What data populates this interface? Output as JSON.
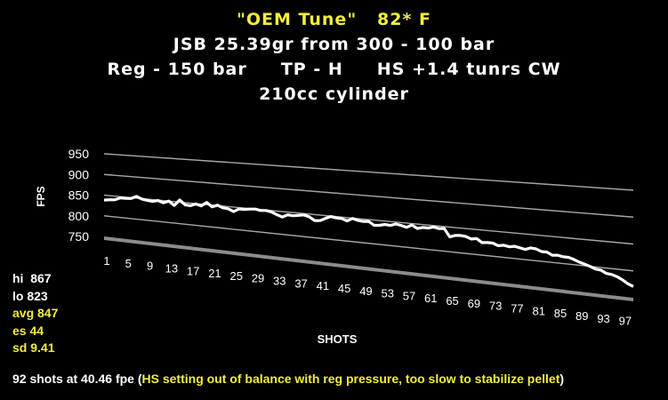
{
  "titles": {
    "line1": "\"OEM Tune\"   82* F",
    "line2": "JSB 25.39gr from 300 - 100 bar",
    "line3": "Reg - 150 bar     TP - H     HS +1.4 tunrs CW",
    "line4": "210cc cylinder"
  },
  "stats": {
    "hi": "hi  867",
    "lo": "lo 823",
    "avg": "avg 847",
    "es": "es 44",
    "sd": "sd 9.41"
  },
  "footer": {
    "prefix": "92 shots at 40.46 fpe (",
    "note": "HS setting out of balance with reg pressure, too slow to stabilize pellet",
    "suffix": ")"
  },
  "colors": {
    "background": "#000000",
    "series": "#ffffff",
    "gridline": "#a6a6a6",
    "highlight": "#f2ee3a"
  },
  "chart_data": {
    "type": "line",
    "title": "\"OEM Tune\"   82* F",
    "xlabel": "SHOTS",
    "ylabel": "FPS",
    "ylim": [
      750,
      950
    ],
    "yticks": [
      750,
      800,
      850,
      900,
      950
    ],
    "xticks": [
      1,
      5,
      9,
      13,
      17,
      21,
      25,
      29,
      33,
      37,
      41,
      45,
      49,
      53,
      57,
      61,
      65,
      69,
      73,
      77,
      81,
      85,
      89,
      93,
      97
    ],
    "grid": true,
    "legend": "none",
    "series": [
      {
        "x": [
          1,
          2,
          3,
          4,
          5,
          6,
          7,
          8,
          9,
          10,
          11,
          12,
          13,
          14,
          15,
          16,
          17,
          18,
          19,
          20,
          21,
          22,
          23,
          24,
          25,
          26,
          27,
          28,
          29,
          30,
          31,
          32,
          33,
          34,
          35,
          36,
          37,
          38,
          39,
          40,
          41,
          42,
          43,
          44,
          45,
          46,
          47,
          48,
          49,
          50,
          51,
          52,
          53,
          54,
          55,
          56,
          57,
          58,
          59,
          60,
          61,
          62,
          63,
          64,
          65,
          66,
          67,
          68,
          69,
          70,
          71,
          72,
          73,
          74,
          75,
          76,
          77,
          78,
          79,
          80,
          81,
          82,
          83,
          84,
          85,
          86,
          87,
          88,
          89,
          90,
          91,
          92,
          93,
          94,
          95,
          96,
          97,
          98,
          99
        ],
        "values": [
          838,
          840,
          841,
          847,
          847,
          848,
          854,
          849,
          847,
          846,
          849,
          845,
          850,
          841,
          855,
          845,
          844,
          849,
          846,
          855,
          846,
          851,
          846,
          845,
          840,
          847,
          847,
          849,
          850,
          848,
          849,
          847,
          842,
          838,
          844,
          843,
          845,
          847,
          844,
          837,
          838,
          844,
          849,
          847,
          847,
          843,
          849,
          846,
          845,
          846,
          839,
          840,
          843,
          842,
          846,
          844,
          841,
          847,
          841,
          844,
          844,
          847,
          845,
          846,
          830,
          834,
          835,
          834,
          830,
          832,
          825,
          826,
          826,
          822,
          824,
          822,
          824,
          822,
          820,
          824,
          823,
          819,
          819,
          814,
          815,
          813,
          813,
          810,
          806,
          803,
          800,
          796,
          795,
          790,
          789,
          786,
          781,
          775,
          771
        ]
      }
    ]
  }
}
